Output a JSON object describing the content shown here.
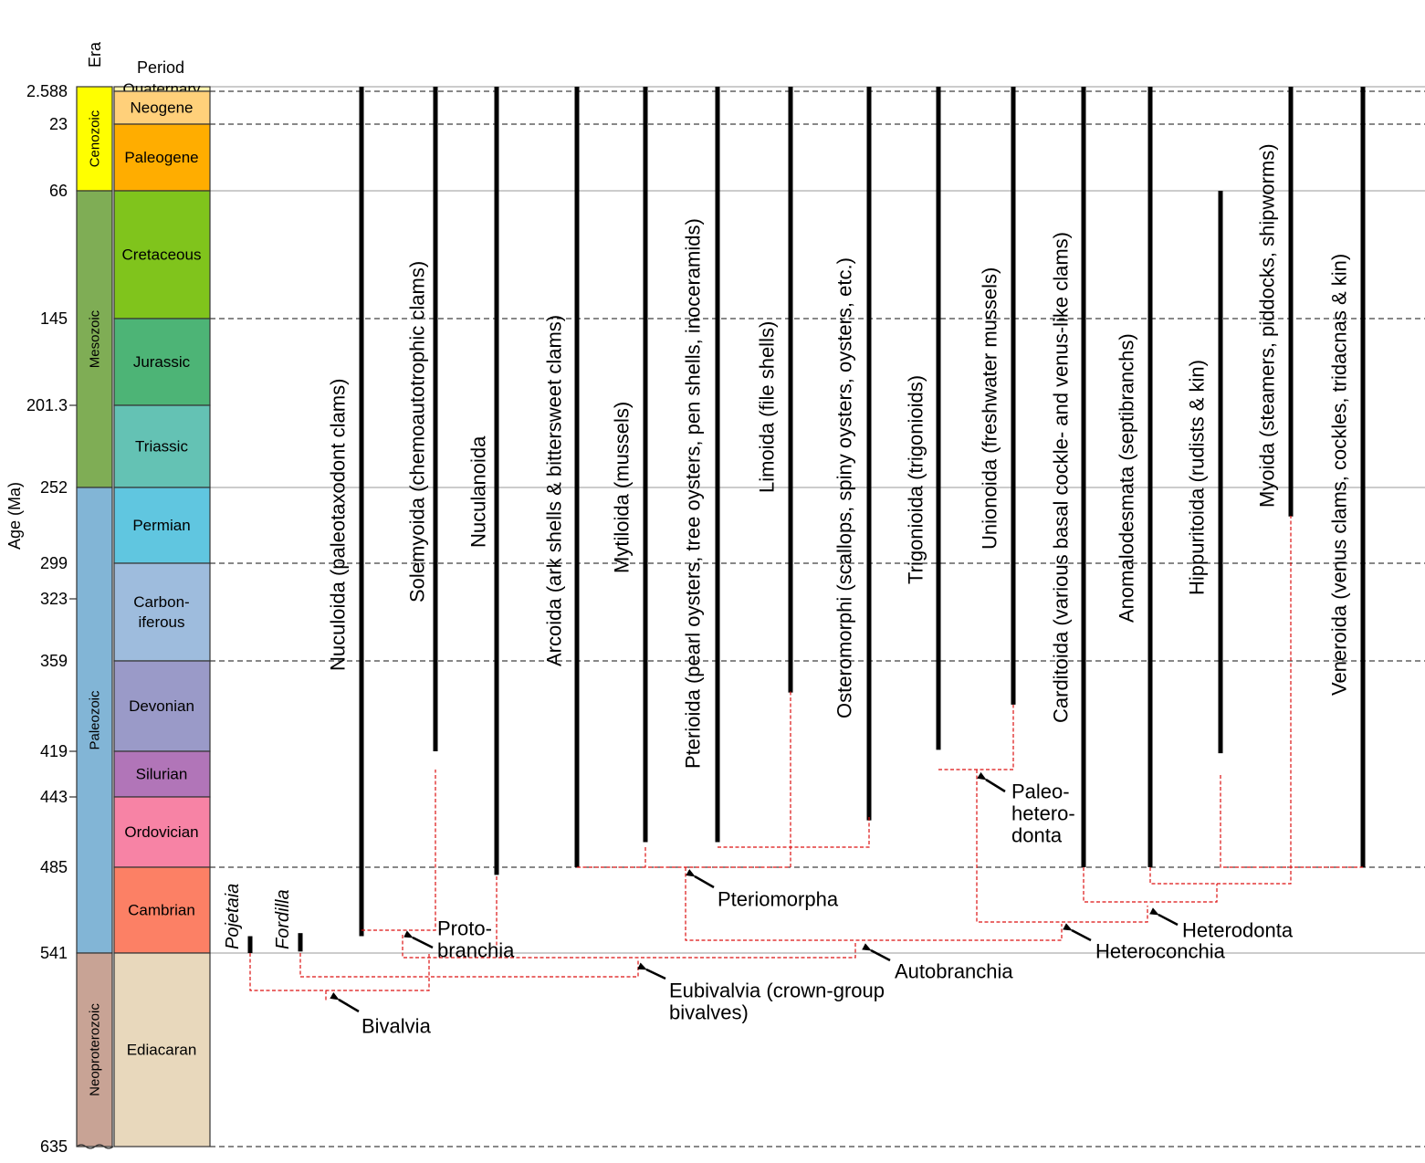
{
  "headers": {
    "era": "Era",
    "period": "Period",
    "age_axis": "Age (Ma)"
  },
  "ages": [
    {
      "label": "2.588",
      "value": 2.588
    },
    {
      "label": "23",
      "value": 23
    },
    {
      "label": "66",
      "value": 66
    },
    {
      "label": "145",
      "value": 145
    },
    {
      "label": "201.3",
      "value": 201.3
    },
    {
      "label": "252",
      "value": 252
    },
    {
      "label": "299",
      "value": 299
    },
    {
      "label": "323",
      "value": 323
    },
    {
      "label": "359",
      "value": 359
    },
    {
      "label": "419",
      "value": 419
    },
    {
      "label": "443",
      "value": 443
    },
    {
      "label": "485",
      "value": 485
    },
    {
      "label": "541",
      "value": 541
    },
    {
      "label": "635",
      "value": 635
    }
  ],
  "eras": [
    {
      "name": "Cenozoic",
      "from": 0,
      "to": 66,
      "color": "#ffff00"
    },
    {
      "name": "Mesozoic",
      "from": 66,
      "to": 252,
      "color": "#7fad55"
    },
    {
      "name": "Paleozoic",
      "from": 252,
      "to": 541,
      "color": "#82b5d6"
    },
    {
      "name": "Neoproterozoic",
      "from": 541,
      "to": 635,
      "color": "#c8a395"
    }
  ],
  "periods": [
    {
      "name": "Quaternary",
      "lines": [
        "Quaternary"
      ],
      "from": 0,
      "to": 2.588,
      "color": "#fff2ae"
    },
    {
      "name": "Neogene",
      "lines": [
        "Neogene"
      ],
      "from": 2.588,
      "to": 23,
      "color": "#ffd07a"
    },
    {
      "name": "Paleogene",
      "lines": [
        "Paleogene"
      ],
      "from": 23,
      "to": 66,
      "color": "#ffad00"
    },
    {
      "name": "Cretaceous",
      "lines": [
        "Cretaceous"
      ],
      "from": 66,
      "to": 145,
      "color": "#80c41c"
    },
    {
      "name": "Jurassic",
      "lines": [
        "Jurassic"
      ],
      "from": 145,
      "to": 201.3,
      "color": "#4db476"
    },
    {
      "name": "Triassic",
      "lines": [
        "Triassic"
      ],
      "from": 201.3,
      "to": 252,
      "color": "#64c2b4"
    },
    {
      "name": "Permian",
      "lines": [
        "Permian"
      ],
      "from": 252,
      "to": 299,
      "color": "#60c6e0"
    },
    {
      "name": "Carboniferous",
      "lines": [
        "Carbon-",
        "iferous"
      ],
      "from": 299,
      "to": 359,
      "color": "#9ebcdd"
    },
    {
      "name": "Devonian",
      "lines": [
        "Devonian"
      ],
      "from": 359,
      "to": 419,
      "color": "#9a9ac8"
    },
    {
      "name": "Silurian",
      "lines": [
        "Silurian"
      ],
      "from": 419,
      "to": 443,
      "color": "#b175b8"
    },
    {
      "name": "Ordovician",
      "lines": [
        "Ordovician"
      ],
      "from": 443,
      "to": 485,
      "color": "#f783a5"
    },
    {
      "name": "Cambrian",
      "lines": [
        "Cambrian"
      ],
      "from": 485,
      "to": 541,
      "color": "#fc8065"
    },
    {
      "name": "Ediacaran",
      "lines": [
        "Ediacaran"
      ],
      "from": 541,
      "to": 635,
      "color": "#e8d8bc"
    }
  ],
  "orders": [
    {
      "label": "Nuculoida (paleotaxodont clams)",
      "start": 530
    },
    {
      "label": "Solemyoida (chemoautotrophic clams)",
      "start": 419
    },
    {
      "label": "Nuculanoida",
      "start": 490
    },
    {
      "label": "Arcoida (ark shells & bittersweet clams)",
      "start": 485
    },
    {
      "label": "Mytiloida (mussels)",
      "start": 470
    },
    {
      "label": "Pterioida (pearl oysters, tree oysters, pen shells, inoceramids)",
      "start": 470
    },
    {
      "label": "Limoida (file shells)",
      "start": 380
    },
    {
      "label": "Osteromorphi (scallops, spiny oysters, oysters, etc.)",
      "start": 457
    },
    {
      "label": "Trigonioida (trigonioids)",
      "start": 418
    },
    {
      "label": "Unionoida (freshwater mussels)",
      "start": 388
    },
    {
      "label": "Carditoida (various basal cockle- and venus-like clams)",
      "start": 485
    },
    {
      "label": "Anomalodesmata (septibranchs)",
      "start": 485
    },
    {
      "label": "Hippuritoida (rudists & kin)",
      "start": 420,
      "end": 66
    },
    {
      "label": "Myoida (steamers, piddocks, shipworms)",
      "start": 270
    },
    {
      "label": "Veneroida (venus clams, cockles, tridacnas & kin)",
      "start": 485
    }
  ],
  "genera": [
    {
      "label": "Pojetaia",
      "start": 541,
      "end": 530
    },
    {
      "label": "Fordilla",
      "start": 540,
      "end": 528
    }
  ],
  "clades": [
    {
      "label": "Bivalvia",
      "lines": [
        "Bivalvia"
      ]
    },
    {
      "label": "Eubivalvia (crown-group bivalves)",
      "lines": [
        "Eubivalvia (crown-group",
        "bivalves)"
      ]
    },
    {
      "label": "Protobranchia",
      "lines": [
        "Proto-",
        "branchia"
      ]
    },
    {
      "label": "Autobranchia",
      "lines": [
        "Autobranchia"
      ]
    },
    {
      "label": "Pteriomorpha",
      "lines": [
        "Pteriomorpha"
      ]
    },
    {
      "label": "Heteroconchia",
      "lines": [
        "Heteroconchia"
      ]
    },
    {
      "label": "Heterodonta",
      "lines": [
        "Heterodonta"
      ]
    },
    {
      "label": "Paleoheterodonta",
      "lines": [
        "Paleo-",
        "hetero-",
        "donta"
      ]
    }
  ]
}
